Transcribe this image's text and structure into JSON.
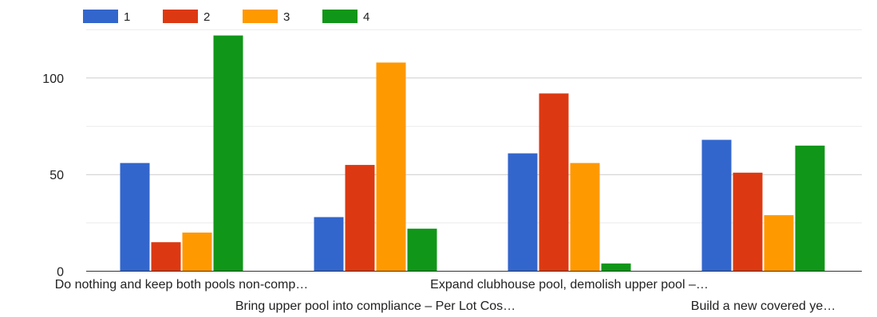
{
  "chart_data": {
    "type": "bar",
    "title": "",
    "xlabel": "",
    "ylabel": "",
    "ylim": [
      0,
      128
    ],
    "yticks": [
      0,
      50,
      100
    ],
    "grid": true,
    "legend_position": "top-left",
    "categories": [
      "Do nothing and keep both pools non-comp…",
      "Bring upper pool into compliance – Per Lot Cos…",
      "Expand clubhouse pool, demolish upper pool –…",
      "Build a new covered ye…"
    ],
    "series": [
      {
        "name": "1",
        "color": "#3366cc",
        "values": [
          56,
          28,
          61,
          68
        ]
      },
      {
        "name": "2",
        "color": "#dc3912",
        "values": [
          15,
          55,
          92,
          51
        ]
      },
      {
        "name": "3",
        "color": "#ff9900",
        "values": [
          20,
          108,
          56,
          29
        ]
      },
      {
        "name": "4",
        "color": "#109618",
        "values": [
          122,
          22,
          4,
          65
        ]
      }
    ]
  }
}
